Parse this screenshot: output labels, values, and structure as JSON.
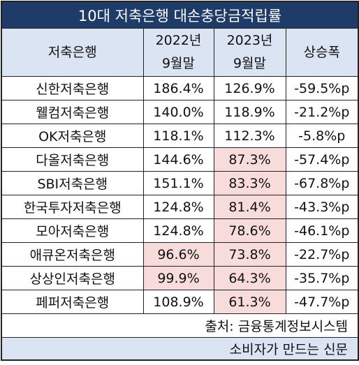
{
  "title": "10대 저축은행 대손충당금적립률",
  "headers": {
    "bank": "저축은행",
    "y2022_line1": "2022년",
    "y2022_line2": "9월말",
    "y2023_line1": "2023년",
    "y2023_line2": "9월말",
    "change": "상승폭"
  },
  "rows": [
    {
      "bank": "신한저축은행",
      "y2022": "186.4%",
      "y2023": "126.9%",
      "change": "-59.5%p"
    },
    {
      "bank": "웰컴저축은행",
      "y2022": "140.0%",
      "y2023": "118.9%",
      "change": "-21.2%p"
    },
    {
      "bank": "OK저축은행",
      "y2022": "118.1%",
      "y2023": "112.3%",
      "change": "-5.8%p"
    },
    {
      "bank": "다올저축은행",
      "y2022": "144.6%",
      "y2023": "87.3%",
      "change": "-57.4%p"
    },
    {
      "bank": "SBI저축은행",
      "y2022": "151.1%",
      "y2023": "83.3%",
      "change": "-67.8%p"
    },
    {
      "bank": "한국투자저축은행",
      "y2022": "124.8%",
      "y2023": "81.4%",
      "change": "-43.3%p"
    },
    {
      "bank": "모아저축은행",
      "y2022": "124.8%",
      "y2023": "78.6%",
      "change": "-46.1%p"
    },
    {
      "bank": "애큐온저축은행",
      "y2022": "96.6%",
      "y2023": "73.8%",
      "change": "-22.7%p"
    },
    {
      "bank": "상상인저축은행",
      "y2022": "99.9%",
      "y2023": "64.3%",
      "change": "-35.7%p"
    },
    {
      "bank": "페퍼저축은행",
      "y2022": "108.9%",
      "y2023": "61.3%",
      "change": "-47.7%p"
    }
  ],
  "source": "출처: 금융통계정보시스템",
  "footer": "소비자가 만드는 신문",
  "colors": {
    "title_bg": "#1f3b68",
    "header_bg": "#dbe4f3",
    "highlight_bg": "#f8dcdc"
  }
}
